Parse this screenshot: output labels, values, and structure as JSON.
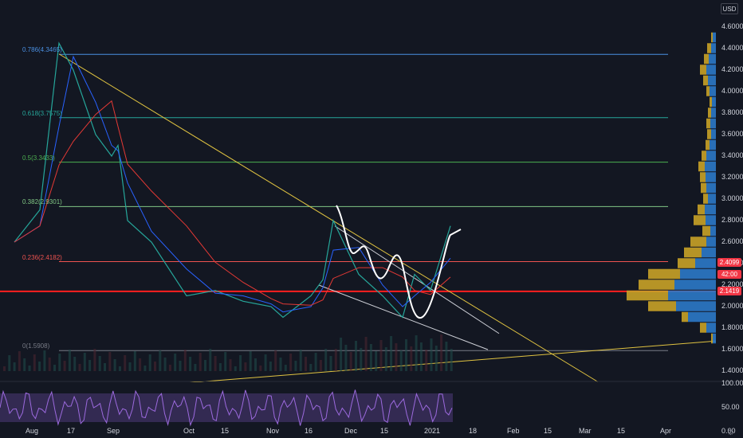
{
  "currency": "USD",
  "colors": {
    "background": "#131722",
    "fib_0786": "#4a90e2",
    "fib_0618": "#26a69a",
    "fib_05": "#4caf50",
    "fib_0382": "#81c784",
    "fib_0236": "#ef5350",
    "fib_0": "#787b86",
    "support": "#ff1f1f",
    "trend": "#e0c341",
    "ema_red": "#e53935",
    "ema_blue": "#2962ff",
    "vp_up": "#2c79c8",
    "vp_down": "#c9a227",
    "rsi": "#7e57c2"
  },
  "fib_levels": [
    {
      "label": "0.786(4.3465)",
      "value": 4.3465
    },
    {
      "label": "0.618(3.7575)",
      "value": 3.7575
    },
    {
      "label": "0.5(3.3433)",
      "value": 3.3433
    },
    {
      "label": "0.382(2.9301)",
      "value": 2.9301
    },
    {
      "label": "0.236(2.4182)",
      "value": 2.4182
    },
    {
      "label": "0(1.5908)",
      "value": 1.5908
    }
  ],
  "price_axis": [
    "4.6000",
    "4.4000",
    "4.2000",
    "4.0000",
    "3.8000",
    "3.6000",
    "3.4000",
    "3.2000",
    "3.0000",
    "2.8000",
    "2.6000",
    "2.4000",
    "2.2000",
    "2.0000",
    "1.8000",
    "1.6000",
    "1.4000"
  ],
  "price_tags": [
    {
      "text": "2.4099",
      "bg": "#f23645"
    },
    {
      "text": "42:00",
      "bg": "#f23645"
    },
    {
      "text": "2.1419",
      "bg": "#f23645"
    }
  ],
  "time_axis": [
    "Aug",
    "17",
    "Sep",
    "Oct",
    "15",
    "Nov",
    "16",
    "Dec",
    "15",
    "2021",
    "18",
    "Feb",
    "15",
    "Mar",
    "15",
    "Apr"
  ],
  "rsi_axis": [
    "100.00",
    "50.00",
    "0.00"
  ],
  "chart_data": {
    "type": "line",
    "title": "",
    "ylim": [
      1.3,
      4.7
    ],
    "x": [
      "Aug 1",
      "Aug 10",
      "Aug 13",
      "Aug 17",
      "Aug 24",
      "Sep 1",
      "Sep 4",
      "Sep 10",
      "Sep 20",
      "Oct 1",
      "Oct 15",
      "Oct 25",
      "Nov 1",
      "Nov 10",
      "Nov 16",
      "Nov 22",
      "Nov 27",
      "Dec 5",
      "Dec 15",
      "Dec 22",
      "Dec 28",
      "2021",
      "Jan 7"
    ],
    "series": [
      {
        "values": [
          2.6,
          2.9,
          4.45,
          4.2,
          3.6,
          3.4,
          3.5,
          2.8,
          2.6,
          2.1,
          2.15,
          2.05,
          2.0,
          1.9,
          2.1,
          2.25,
          2.8,
          2.3,
          2.1,
          1.9,
          2.3,
          2.15,
          2.75
        ]
      }
    ],
    "volume_profile": [
      {
        "price": 4.5,
        "up": 0.04,
        "down": 0.02
      },
      {
        "price": 4.4,
        "up": 0.06,
        "down": 0.05
      },
      {
        "price": 4.3,
        "up": 0.09,
        "down": 0.06
      },
      {
        "price": 4.2,
        "up": 0.12,
        "down": 0.08
      },
      {
        "price": 4.1,
        "up": 0.1,
        "down": 0.06
      },
      {
        "price": 4.0,
        "up": 0.08,
        "down": 0.04
      },
      {
        "price": 3.9,
        "up": 0.05,
        "down": 0.03
      },
      {
        "price": 3.8,
        "up": 0.06,
        "down": 0.04
      },
      {
        "price": 3.7,
        "up": 0.07,
        "down": 0.05
      },
      {
        "price": 3.6,
        "up": 0.06,
        "down": 0.05
      },
      {
        "price": 3.5,
        "up": 0.08,
        "down": 0.05
      },
      {
        "price": 3.4,
        "up": 0.12,
        "down": 0.06
      },
      {
        "price": 3.3,
        "up": 0.14,
        "down": 0.08
      },
      {
        "price": 3.2,
        "up": 0.13,
        "down": 0.07
      },
      {
        "price": 3.1,
        "up": 0.12,
        "down": 0.07
      },
      {
        "price": 3.0,
        "up": 0.1,
        "down": 0.06
      },
      {
        "price": 2.9,
        "up": 0.14,
        "down": 0.09
      },
      {
        "price": 2.8,
        "up": 0.13,
        "down": 0.15
      },
      {
        "price": 2.7,
        "up": 0.07,
        "down": 0.1
      },
      {
        "price": 2.6,
        "up": 0.12,
        "down": 0.2
      },
      {
        "price": 2.5,
        "up": 0.18,
        "down": 0.22
      },
      {
        "price": 2.4,
        "up": 0.26,
        "down": 0.22
      },
      {
        "price": 2.3,
        "up": 0.45,
        "down": 0.4
      },
      {
        "price": 2.2,
        "up": 0.52,
        "down": 0.45
      },
      {
        "price": 2.1,
        "up": 0.6,
        "down": 0.52
      },
      {
        "price": 2.0,
        "up": 0.5,
        "down": 0.35
      },
      {
        "price": 1.9,
        "up": 0.35,
        "down": 0.08
      },
      {
        "price": 1.8,
        "up": 0.12,
        "down": 0.08
      },
      {
        "price": 1.7,
        "up": 0.04,
        "down": 0.02
      }
    ],
    "support_level": 2.1419,
    "rsi_ylim": [
      0,
      100
    ],
    "rsi_band": [
      20,
      80
    ]
  }
}
